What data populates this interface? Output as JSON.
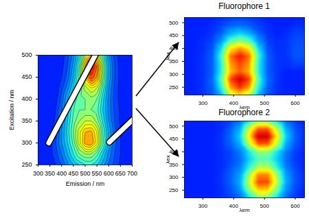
{
  "chart_data": [
    {
      "type": "contour",
      "x_label": "Emission / nm",
      "y_label": "Excitation / nm",
      "xlim": [
        300,
        700
      ],
      "ylim": [
        250,
        500
      ],
      "xticks": [
        300,
        350,
        400,
        450,
        500,
        550,
        600,
        650,
        700
      ],
      "yticks": [
        250,
        300,
        350,
        400,
        450,
        500
      ],
      "x": [
        300,
        325,
        350,
        375,
        400,
        425,
        450,
        475,
        500,
        525,
        550,
        575,
        600,
        625,
        650,
        675,
        700
      ],
      "y": [
        250,
        275,
        300,
        325,
        350,
        375,
        400,
        425,
        450,
        475,
        500
      ],
      "values": [
        [
          0,
          0,
          2,
          5,
          10,
          18,
          25,
          30,
          35,
          35,
          30,
          22,
          14,
          8,
          4,
          2,
          0
        ],
        [
          0,
          0,
          3,
          8,
          15,
          25,
          35,
          45,
          50,
          50,
          42,
          30,
          18,
          10,
          5,
          2,
          0
        ],
        [
          0,
          0,
          3,
          10,
          20,
          30,
          42,
          58,
          72,
          75,
          62,
          42,
          25,
          12,
          5,
          2,
          0
        ],
        [
          0,
          0,
          2,
          8,
          20,
          32,
          45,
          58,
          70,
          72,
          60,
          40,
          24,
          12,
          5,
          2,
          0
        ],
        [
          0,
          0,
          2,
          6,
          18,
          30,
          42,
          50,
          55,
          55,
          48,
          34,
          20,
          10,
          4,
          2,
          0
        ],
        [
          0,
          0,
          0,
          5,
          15,
          28,
          40,
          45,
          45,
          45,
          42,
          30,
          18,
          9,
          4,
          1,
          0
        ],
        [
          0,
          0,
          0,
          3,
          12,
          25,
          38,
          42,
          45,
          48,
          45,
          32,
          18,
          8,
          3,
          1,
          0
        ],
        [
          0,
          0,
          0,
          2,
          8,
          18,
          30,
          40,
          52,
          60,
          55,
          38,
          20,
          8,
          3,
          1,
          0
        ],
        [
          0,
          0,
          0,
          0,
          5,
          12,
          25,
          42,
          68,
          85,
          75,
          48,
          24,
          10,
          3,
          1,
          0
        ],
        [
          0,
          0,
          0,
          0,
          3,
          10,
          22,
          40,
          70,
          95,
          80,
          50,
          25,
          10,
          3,
          1,
          0
        ],
        [
          0,
          0,
          0,
          0,
          2,
          8,
          18,
          32,
          55,
          70,
          62,
          40,
          20,
          8,
          3,
          1,
          0
        ]
      ],
      "masked_bands": [
        {
          "x": [
            345,
            553
          ],
          "y": [
            300,
            510
          ]
        },
        {
          "x": [
            603,
            712
          ],
          "y": [
            302,
            358
          ]
        }
      ]
    },
    {
      "type": "heatmap",
      "title": "Fluorophore 1",
      "x_label": "λem",
      "y_label": "λex",
      "xlim": [
        240,
        630
      ],
      "ylim": [
        220,
        520
      ],
      "xticks": [
        300,
        400,
        500,
        600
      ],
      "yticks": [
        250,
        300,
        350,
        400,
        450,
        500
      ],
      "x": [
        240,
        270,
        300,
        330,
        360,
        390,
        420,
        450,
        480,
        510,
        540,
        570,
        600,
        630
      ],
      "y": [
        220,
        250,
        280,
        310,
        340,
        370,
        400,
        430,
        460,
        490,
        520
      ],
      "values": [
        [
          0,
          0,
          2,
          8,
          25,
          55,
          65,
          55,
          25,
          8,
          2,
          0,
          0,
          0
        ],
        [
          0,
          0,
          3,
          10,
          35,
          75,
          88,
          75,
          35,
          10,
          3,
          0,
          0,
          0
        ],
        [
          0,
          0,
          3,
          12,
          40,
          85,
          100,
          85,
          40,
          12,
          3,
          0,
          0,
          0
        ],
        [
          0,
          0,
          3,
          10,
          35,
          72,
          82,
          72,
          35,
          10,
          3,
          0,
          0,
          0
        ],
        [
          0,
          0,
          3,
          10,
          35,
          75,
          85,
          75,
          35,
          10,
          3,
          2,
          5,
          5
        ],
        [
          0,
          0,
          3,
          10,
          38,
          80,
          92,
          80,
          38,
          10,
          3,
          3,
          8,
          8
        ],
        [
          0,
          0,
          2,
          8,
          30,
          65,
          75,
          65,
          30,
          8,
          2,
          3,
          8,
          8
        ],
        [
          0,
          0,
          2,
          5,
          18,
          40,
          48,
          40,
          18,
          5,
          2,
          3,
          7,
          7
        ],
        [
          0,
          0,
          0,
          3,
          10,
          22,
          28,
          22,
          10,
          3,
          0,
          2,
          5,
          5
        ],
        [
          0,
          0,
          0,
          2,
          5,
          10,
          12,
          10,
          5,
          2,
          0,
          0,
          2,
          2
        ],
        [
          0,
          0,
          0,
          0,
          2,
          4,
          5,
          4,
          2,
          0,
          0,
          0,
          0,
          0
        ]
      ]
    },
    {
      "type": "heatmap",
      "title": "Fluorophore 2",
      "x_label": "λem",
      "y_label": "λex",
      "xlim": [
        240,
        630
      ],
      "ylim": [
        220,
        520
      ],
      "xticks": [
        300,
        400,
        500,
        600
      ],
      "yticks": [
        250,
        300,
        350,
        400,
        450,
        500
      ],
      "x": [
        240,
        270,
        300,
        330,
        360,
        390,
        420,
        450,
        480,
        510,
        540,
        570,
        600,
        630
      ],
      "y": [
        220,
        250,
        280,
        310,
        340,
        370,
        400,
        430,
        460,
        490,
        520
      ],
      "values": [
        [
          0,
          0,
          0,
          0,
          2,
          5,
          12,
          30,
          45,
          45,
          30,
          12,
          4,
          0
        ],
        [
          0,
          0,
          0,
          0,
          2,
          8,
          18,
          45,
          68,
          68,
          45,
          18,
          6,
          0
        ],
        [
          0,
          0,
          0,
          0,
          3,
          10,
          22,
          55,
          85,
          85,
          55,
          22,
          8,
          2
        ],
        [
          0,
          0,
          0,
          0,
          3,
          10,
          20,
          50,
          78,
          78,
          50,
          20,
          8,
          2
        ],
        [
          0,
          0,
          0,
          0,
          2,
          8,
          15,
          35,
          52,
          52,
          35,
          15,
          6,
          0
        ],
        [
          0,
          0,
          0,
          0,
          2,
          6,
          12,
          28,
          40,
          40,
          28,
          12,
          4,
          0
        ],
        [
          0,
          0,
          0,
          0,
          2,
          6,
          14,
          32,
          48,
          48,
          32,
          14,
          5,
          0
        ],
        [
          0,
          0,
          0,
          0,
          3,
          10,
          22,
          55,
          82,
          82,
          55,
          22,
          8,
          2
        ],
        [
          0,
          0,
          0,
          0,
          3,
          12,
          28,
          65,
          100,
          100,
          65,
          28,
          10,
          2
        ],
        [
          0,
          0,
          0,
          0,
          2,
          10,
          22,
          55,
          82,
          82,
          55,
          22,
          8,
          2
        ],
        [
          0,
          0,
          0,
          0,
          2,
          5,
          12,
          30,
          45,
          45,
          30,
          12,
          4,
          0
        ]
      ]
    }
  ]
}
